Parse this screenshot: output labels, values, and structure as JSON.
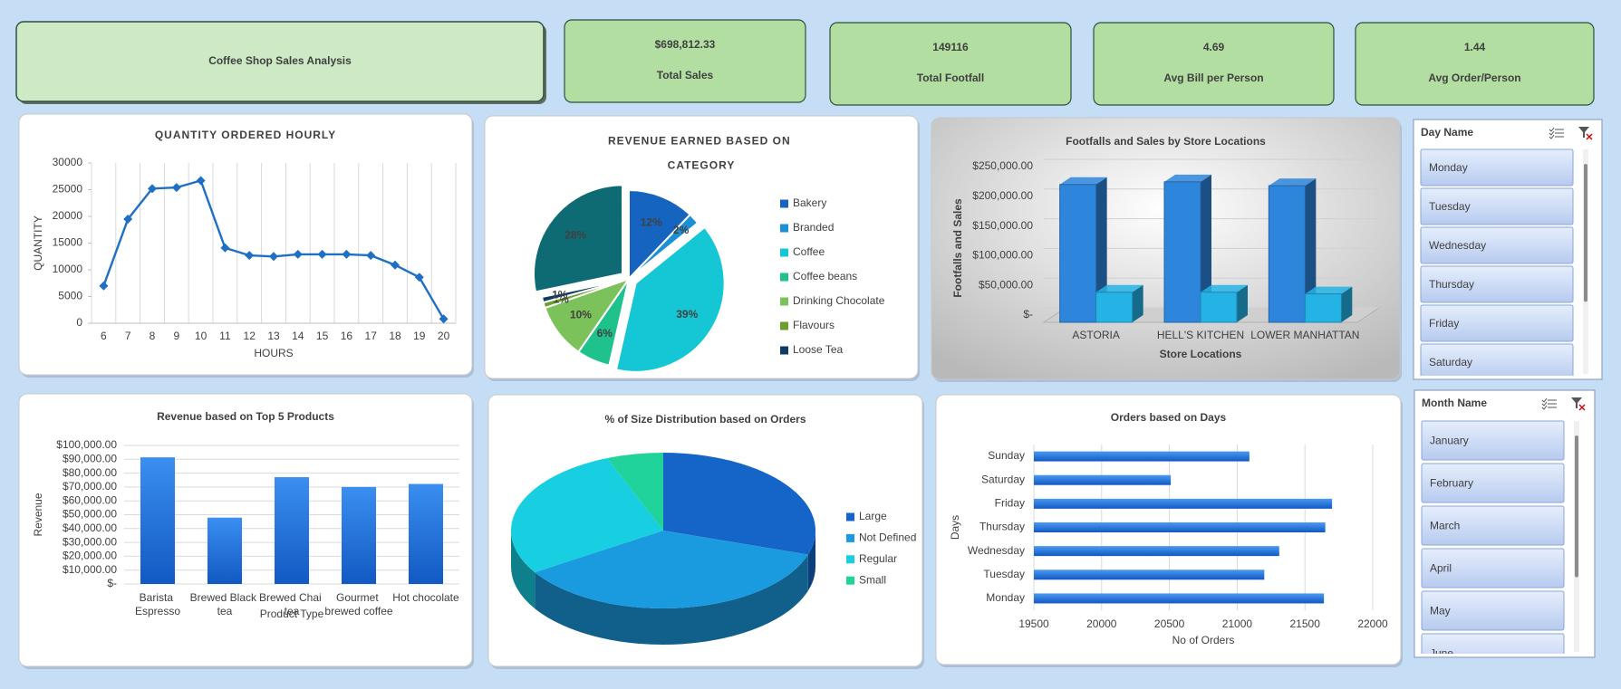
{
  "header": {
    "title": "Coffee Shop Sales Analysis"
  },
  "kpis": [
    {
      "value": "$698,812.33",
      "label": "Total Sales"
    },
    {
      "value": "149116",
      "label": "Total Footfall"
    },
    {
      "value": "4.69",
      "label": "Avg Bill per Person"
    },
    {
      "value": "1.44",
      "label": "Avg Order/Person"
    }
  ],
  "chart_data": [
    {
      "type": "line",
      "title": "QUANTITY ORDERED HOURLY",
      "x_label": "HOURS",
      "y_label": "QUANTITY",
      "categories": [
        "6",
        "7",
        "8",
        "9",
        "10",
        "11",
        "12",
        "13",
        "14",
        "15",
        "16",
        "17",
        "18",
        "19",
        "20"
      ],
      "values": [
        7000,
        19500,
        25200,
        25400,
        26700,
        14100,
        12700,
        12500,
        12900,
        12900,
        12900,
        12700,
        10900,
        8600,
        800
      ],
      "color": "#1f6fc5",
      "ylim": [
        0,
        30000
      ],
      "yticks": [
        0,
        5000,
        10000,
        15000,
        20000,
        25000,
        30000
      ]
    },
    {
      "type": "pie",
      "title": "REVENUE EARNED BASED ON CATEGORY",
      "categories": [
        "Bakery",
        "Branded",
        "Coffee",
        "Coffee beans",
        "Drinking Chocolate",
        "Flavours",
        "Loose Tea",
        null
      ],
      "values": [
        12,
        2,
        39,
        6,
        10,
        1,
        1,
        28
      ],
      "value_labels": [
        "12%",
        "2%",
        "39%",
        "6%",
        "10%",
        "1%",
        "1%",
        "28%"
      ],
      "colors": [
        "#1565c0",
        "#1c8fd6",
        "#15c6d4",
        "#1fc28c",
        "#7cc25a",
        "#6b9e2a",
        "#0d3b66",
        "#0e6b74"
      ],
      "exploded": [
        false,
        false,
        true,
        false,
        false,
        false,
        false,
        true
      ]
    },
    {
      "type": "bar",
      "three_d": true,
      "title": "Footfalls and Sales by Store Locations",
      "x_label": "Store Locations",
      "y_label": "Footfalls and Sales",
      "categories": [
        "ASTORIA",
        "HELL'S KITCHEN",
        "LOWER MANHATTAN"
      ],
      "series": [
        {
          "color": "#2e86dc",
          "values": [
            232000,
            236500,
            230000
          ]
        },
        {
          "color": "#25b3e6",
          "values": [
            50600,
            50700,
            47800
          ]
        }
      ],
      "ylim": [
        0,
        250000
      ],
      "yticks": [
        {
          "value": 0,
          "label": "$-"
        },
        {
          "value": 50000,
          "label": "$50,000.00"
        },
        {
          "value": 100000,
          "label": "$100,000.00"
        },
        {
          "value": 150000,
          "label": "$150,000.00"
        },
        {
          "value": 200000,
          "label": "$200,000.00"
        },
        {
          "value": 250000,
          "label": "$250,000.00"
        }
      ]
    },
    {
      "type": "bar",
      "title": "Revenue based on Top 5 Products",
      "x_label": "Product Type",
      "y_label": "Revenue",
      "categories": [
        "Barista Espresso",
        "Brewed Black tea",
        "Brewed Chai tea",
        "Gourmet brewed coffee",
        "Hot chocolate"
      ],
      "values": [
        91400,
        47900,
        77100,
        70000,
        72200
      ],
      "color": "#1f6fd6",
      "ylim": [
        0,
        100000
      ],
      "yticks": [
        {
          "value": 0,
          "label": "$-"
        },
        {
          "value": 10000,
          "label": "$10,000.00"
        },
        {
          "value": 20000,
          "label": "$20,000.00"
        },
        {
          "value": 30000,
          "label": "$30,000.00"
        },
        {
          "value": 40000,
          "label": "$40,000.00"
        },
        {
          "value": 50000,
          "label": "$50,000.00"
        },
        {
          "value": 60000,
          "label": "$60,000.00"
        },
        {
          "value": 70000,
          "label": "$70,000.00"
        },
        {
          "value": 80000,
          "label": "$80,000.00"
        },
        {
          "value": 90000,
          "label": "$90,000.00"
        },
        {
          "value": 100000,
          "label": "$100,000.00"
        }
      ],
      "grid": true
    },
    {
      "type": "pie",
      "three_d": true,
      "title": "% of Size Distribution based on Orders",
      "categories": [
        "Large",
        "Not Defined",
        "Regular",
        "Small"
      ],
      "values": [
        30,
        36,
        28,
        6
      ],
      "colors": [
        "#1565c8",
        "#1a9be0",
        "#17cfe0",
        "#1fd39a"
      ]
    },
    {
      "type": "bar",
      "horizontal": true,
      "title": "Orders based on Days",
      "x_label": "No of Orders",
      "y_label": "Days",
      "categories": [
        "Sunday",
        "Saturday",
        "Friday",
        "Thursday",
        "Wednesday",
        "Tuesday",
        "Monday"
      ],
      "values": [
        21090,
        20510,
        21700,
        21650,
        21310,
        21200,
        21640
      ],
      "color": "#1f6fd6",
      "xlim": [
        19500,
        22000
      ],
      "xticks": [
        19500,
        20000,
        20500,
        21000,
        21500,
        22000
      ],
      "grid": true
    }
  ],
  "slicers": [
    {
      "title": "Day Name",
      "items": [
        "Monday",
        "Tuesday",
        "Wednesday",
        "Thursday",
        "Friday",
        "Saturday"
      ]
    },
    {
      "title": "Month Name",
      "items": [
        "January",
        "February",
        "March",
        "April",
        "May",
        "June"
      ]
    }
  ]
}
